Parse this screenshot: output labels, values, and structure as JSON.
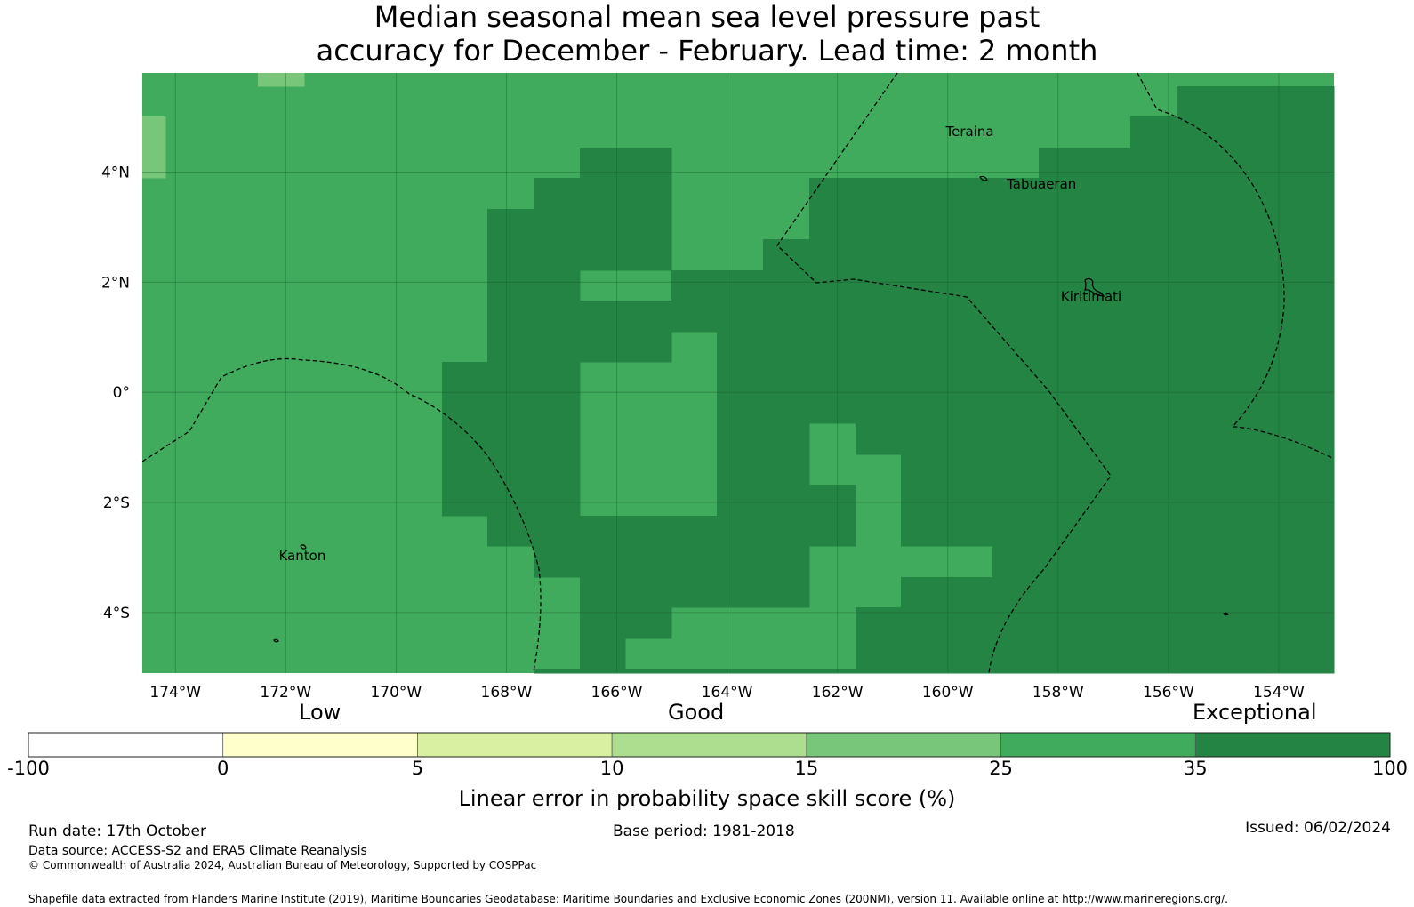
{
  "title": {
    "line1": "Median seasonal mean sea level pressure past",
    "line2": "accuracy for December - February. Lead time: 2 month"
  },
  "map": {
    "lon_range": [
      -174.6,
      -153.0
    ],
    "lat_range": [
      -5.1,
      5.8
    ],
    "lon_ticks": [
      {
        "value": -174,
        "label": "174°W"
      },
      {
        "value": -172,
        "label": "172°W"
      },
      {
        "value": -170,
        "label": "170°W"
      },
      {
        "value": -168,
        "label": "168°W"
      },
      {
        "value": -166,
        "label": "166°W"
      },
      {
        "value": -164,
        "label": "164°W"
      },
      {
        "value": -162,
        "label": "162°W"
      },
      {
        "value": -160,
        "label": "160°W"
      },
      {
        "value": -158,
        "label": "158°W"
      },
      {
        "value": -156,
        "label": "156°W"
      },
      {
        "value": -154,
        "label": "154°W"
      }
    ],
    "lat_ticks": [
      {
        "value": 4,
        "label": "4°N"
      },
      {
        "value": 2,
        "label": "2°N"
      },
      {
        "value": 0,
        "label": "0°"
      },
      {
        "value": -2,
        "label": "2°S"
      },
      {
        "value": -4,
        "label": "4°S"
      }
    ],
    "places": [
      {
        "name": "Teraina",
        "lon": -159.6,
        "lat": 4.65
      },
      {
        "name": "Tabuaeran",
        "lon": -158.3,
        "lat": 3.7
      },
      {
        "name": "Kiritimati",
        "lon": -157.4,
        "lat": 1.66
      },
      {
        "name": "Kanton",
        "lon": -171.7,
        "lat": -3.05
      }
    ]
  },
  "colorbar": {
    "categories": {
      "low": "Low",
      "good": "Good",
      "exceptional": "Exceptional"
    },
    "ticks": [
      "-100",
      "0",
      "5",
      "10",
      "15",
      "25",
      "35",
      "100"
    ],
    "colors": [
      "#ffffff",
      "#ffffcc",
      "#d9f0a3",
      "#addd8e",
      "#78c679",
      "#41ab5d",
      "#238443"
    ],
    "label": "Linear error in probability space skill score (%)"
  },
  "footer": {
    "run_date": "Run date: 17th October",
    "base_period": "Base period: 1981-2018",
    "issued": "Issued: 06/02/2024",
    "data_source": "Data source: ACCESS-S2 and ERA5 Climate Reanalysis",
    "copyright": "© Commonwealth of Australia 2024, Australian Bureau of Meteorology, Supported by COSPPac",
    "shapefile": "Shapefile data extracted from Flanders Marine Institute (2019), Maritime Boundaries Geodatabase: Maritime Boundaries and Exclusive Economic Zones (200NM), version 11. Available online at http://www.marineregions.org/."
  }
}
